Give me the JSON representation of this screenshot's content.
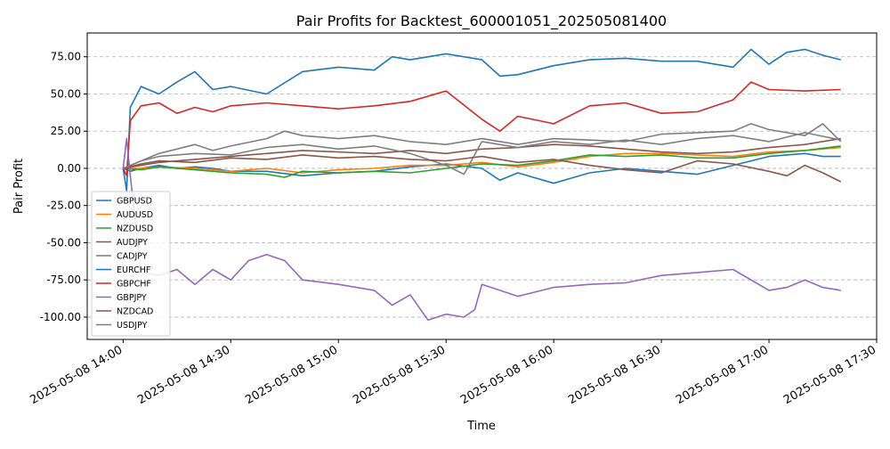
{
  "chart_data": {
    "type": "line",
    "title": "Pair Profits for Backtest_600001051_202505081400",
    "xlabel": "Time",
    "ylabel": "Pair Profit",
    "x_ticks": [
      "2025-05-08 14:00",
      "2025-05-08 14:30",
      "2025-05-08 15:00",
      "2025-05-08 15:30",
      "2025-05-08 16:00",
      "2025-05-08 16:30",
      "2025-05-08 17:00",
      "2025-05-08 17:30"
    ],
    "xlim": [
      "2025-05-08 13:50",
      "2025-05-08 17:30"
    ],
    "y_ticks": [
      "75.00",
      "50.00",
      "25.00",
      "0.00",
      "-25.00",
      "-50.00",
      "-75.00",
      "-100.00"
    ],
    "y_tick_values": [
      75,
      50,
      25,
      0,
      -25,
      -50,
      -75,
      -100
    ],
    "ylim": [
      -115,
      91
    ],
    "grid": "y-dashed",
    "legend_position": "lower-left",
    "series": [
      {
        "name": "GBPUSD",
        "color": "#1f77b4",
        "x": [
          "14:00",
          "14:02",
          "14:05",
          "14:10",
          "14:15",
          "14:20",
          "14:25",
          "14:30",
          "14:40",
          "14:50",
          "15:00",
          "15:10",
          "15:20",
          "15:30",
          "15:40",
          "15:45",
          "15:50",
          "16:00",
          "16:10",
          "16:20",
          "16:30",
          "16:40",
          "16:50",
          "17:00",
          "17:10",
          "17:15",
          "17:20"
        ],
        "values": [
          0,
          -2,
          0,
          2,
          0,
          1,
          0,
          -2,
          -2,
          -5,
          -3,
          -2,
          1,
          3,
          0,
          -8,
          -3,
          -10,
          -3,
          0,
          -2,
          -4,
          2,
          8,
          10,
          8,
          8
        ]
      },
      {
        "name": "AUDUSD",
        "color": "#ff7f0e",
        "x": [
          "14:00",
          "14:05",
          "14:10",
          "14:20",
          "14:30",
          "14:40",
          "14:50",
          "15:00",
          "15:10",
          "15:20",
          "15:30",
          "15:40",
          "15:50",
          "16:00",
          "16:10",
          "16:20",
          "16:30",
          "16:40",
          "16:50",
          "17:00",
          "17:10",
          "17:20"
        ],
        "values": [
          0,
          0,
          1,
          0,
          -2,
          0,
          -3,
          -1,
          0,
          2,
          2,
          4,
          1,
          4,
          8,
          10,
          10,
          9,
          8,
          11,
          12,
          14
        ]
      },
      {
        "name": "NZDUSD",
        "color": "#2ca02c",
        "x": [
          "14:00",
          "14:05",
          "14:10",
          "14:20",
          "14:30",
          "14:40",
          "14:45",
          "14:50",
          "15:00",
          "15:10",
          "15:20",
          "15:30",
          "15:40",
          "15:50",
          "16:00",
          "16:10",
          "16:20",
          "16:30",
          "16:40",
          "16:50",
          "17:00",
          "17:10",
          "17:20"
        ],
        "values": [
          0,
          -1,
          1,
          -1,
          -3,
          -4,
          -6,
          -2,
          -3,
          -2,
          -3,
          0,
          3,
          2,
          5,
          9,
          8,
          9,
          7,
          7,
          10,
          12,
          15
        ]
      },
      {
        "name": "AUDJPY",
        "color": "#8c564b",
        "x": [
          "14:00",
          "14:05",
          "14:10",
          "14:20",
          "14:30",
          "14:40",
          "14:50",
          "15:00",
          "15:10",
          "15:20",
          "15:30",
          "15:40",
          "15:50",
          "16:00",
          "16:10",
          "16:20",
          "16:30",
          "16:40",
          "16:50",
          "17:00",
          "17:10",
          "17:20"
        ],
        "values": [
          0,
          2,
          4,
          6,
          8,
          10,
          12,
          11,
          10,
          12,
          10,
          13,
          14,
          16,
          15,
          13,
          11,
          10,
          11,
          14,
          16,
          20
        ]
      },
      {
        "name": "CADJPY",
        "color": "#7f7f7f",
        "x": [
          "14:00",
          "14:05",
          "14:10",
          "14:20",
          "14:30",
          "14:40",
          "14:50",
          "15:00",
          "15:10",
          "15:20",
          "15:30",
          "15:35",
          "15:40",
          "15:50",
          "16:00",
          "16:10",
          "16:20",
          "16:30",
          "16:40",
          "16:50",
          "17:00",
          "17:10",
          "17:20"
        ],
        "values": [
          0,
          5,
          8,
          10,
          9,
          14,
          16,
          13,
          15,
          10,
          2,
          -4,
          18,
          14,
          18,
          16,
          19,
          16,
          20,
          22,
          18,
          24,
          19
        ]
      },
      {
        "name": "EURCHF",
        "color": "#1f77b4",
        "x": [
          "14:00",
          "14:01",
          "14:02",
          "14:05",
          "14:10",
          "14:15",
          "14:20",
          "14:25",
          "14:30",
          "14:40",
          "14:50",
          "15:00",
          "15:10",
          "15:15",
          "15:20",
          "15:30",
          "15:40",
          "15:45",
          "15:50",
          "16:00",
          "16:10",
          "16:20",
          "16:30",
          "16:40",
          "16:50",
          "16:55",
          "17:00",
          "17:05",
          "17:10",
          "17:15",
          "17:20"
        ],
        "values": [
          0,
          -15,
          41,
          55,
          50,
          58,
          65,
          53,
          55,
          50,
          65,
          68,
          66,
          75,
          73,
          77,
          73,
          62,
          63,
          69,
          73,
          74,
          72,
          72,
          68,
          80,
          70,
          78,
          80,
          76,
          73
        ]
      },
      {
        "name": "GBPCHF",
        "color": "#d62728",
        "x": [
          "14:00",
          "14:01",
          "14:02",
          "14:05",
          "14:10",
          "14:15",
          "14:20",
          "14:25",
          "14:30",
          "14:40",
          "14:50",
          "15:00",
          "15:10",
          "15:20",
          "15:30",
          "15:40",
          "15:45",
          "15:50",
          "16:00",
          "16:10",
          "16:20",
          "16:30",
          "16:40",
          "16:50",
          "16:55",
          "17:00",
          "17:10",
          "17:20"
        ],
        "values": [
          0,
          -5,
          32,
          42,
          44,
          37,
          41,
          38,
          42,
          44,
          42,
          40,
          42,
          45,
          52,
          33,
          25,
          35,
          30,
          42,
          44,
          37,
          38,
          46,
          58,
          53,
          52,
          53
        ]
      },
      {
        "name": "GBPJPY",
        "color": "#9467bd",
        "x": [
          "14:00",
          "14:01",
          "14:02",
          "14:05",
          "14:10",
          "14:15",
          "14:20",
          "14:25",
          "14:30",
          "14:35",
          "14:40",
          "14:45",
          "14:50",
          "15:00",
          "15:10",
          "15:15",
          "15:20",
          "15:25",
          "15:30",
          "15:35",
          "15:38",
          "15:40",
          "15:45",
          "15:50",
          "16:00",
          "16:10",
          "16:20",
          "16:30",
          "16:40",
          "16:50",
          "17:00",
          "17:05",
          "17:10",
          "17:15",
          "17:20"
        ],
        "values": [
          0,
          20,
          -5,
          -70,
          -72,
          -68,
          -78,
          -68,
          -75,
          -62,
          -58,
          -62,
          -75,
          -78,
          -82,
          -92,
          -85,
          -102,
          -98,
          -100,
          -95,
          -78,
          -82,
          -86,
          -80,
          -78,
          -77,
          -72,
          -70,
          -68,
          -82,
          -80,
          -75,
          -80,
          -82
        ]
      },
      {
        "name": "NZDCAD",
        "color": "#8c564b",
        "x": [
          "14:00",
          "14:05",
          "14:10",
          "14:20",
          "14:30",
          "14:40",
          "14:50",
          "15:00",
          "15:10",
          "15:20",
          "15:30",
          "15:40",
          "15:50",
          "16:00",
          "16:10",
          "16:20",
          "16:30",
          "16:40",
          "16:50",
          "17:00",
          "17:05",
          "17:10",
          "17:15",
          "17:20"
        ],
        "values": [
          0,
          3,
          5,
          4,
          7,
          6,
          9,
          7,
          8,
          6,
          5,
          8,
          4,
          6,
          2,
          -1,
          -3,
          5,
          3,
          -2,
          -5,
          2,
          -3,
          -9
        ]
      },
      {
        "name": "USDJPY",
        "color": "#7f7f7f",
        "x": [
          "14:00",
          "14:05",
          "14:10",
          "14:15",
          "14:20",
          "14:25",
          "14:30",
          "14:40",
          "14:45",
          "14:50",
          "15:00",
          "15:10",
          "15:20",
          "15:30",
          "15:40",
          "15:50",
          "16:00",
          "16:10",
          "16:20",
          "16:30",
          "16:40",
          "16:50",
          "16:55",
          "17:00",
          "17:10",
          "17:15",
          "17:20"
        ],
        "values": [
          0,
          5,
          10,
          13,
          16,
          12,
          15,
          20,
          25,
          22,
          20,
          22,
          18,
          16,
          20,
          16,
          20,
          19,
          18,
          23,
          24,
          25,
          30,
          26,
          22,
          30,
          18
        ]
      }
    ]
  }
}
